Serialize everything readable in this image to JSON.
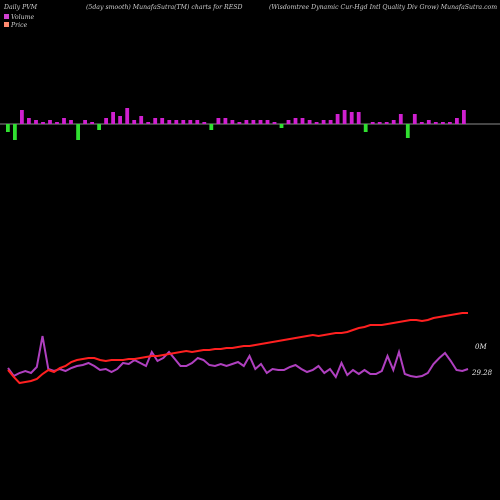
{
  "header": {
    "left": "Daily PVM",
    "smoothing": "(5day smooth) MunafaSutra(TM) charts for RESD",
    "company": "(Wisdomtree   Dynamic Cur-Hgd Intl Quality Div   Grow) MunafaSutra.com"
  },
  "legend": {
    "volume_label": "Volume",
    "price_label": "Price",
    "volume_color": "#d040d0",
    "price_color": "#ff8a70"
  },
  "chart_data": {
    "type": "line",
    "title": "",
    "price_label": "29.28",
    "volume_label": "0M",
    "colors": {
      "price": "#ff2020",
      "volume": "#b040c0",
      "bar_up": "#d020d0",
      "bar_down": "#30e030",
      "axis": "#bbbbbb"
    },
    "volume_bars": [
      -4,
      -8,
      7,
      3,
      2,
      1,
      2,
      1,
      3,
      2,
      -8,
      2,
      1,
      -3,
      3,
      6,
      4,
      8,
      2,
      4,
      1,
      3,
      3,
      2,
      2,
      2,
      2,
      2,
      1,
      -3,
      3,
      3,
      2,
      1,
      2,
      2,
      2,
      2,
      1,
      -2,
      2,
      3,
      3,
      2,
      1,
      2,
      2,
      5,
      7,
      6,
      6,
      -4,
      1,
      1,
      1,
      2,
      5,
      -7,
      5,
      1,
      2,
      1,
      1,
      1,
      3,
      7
    ],
    "volume_line": [
      368,
      376,
      373,
      371,
      373,
      367,
      336,
      369,
      371,
      369,
      371,
      368,
      366,
      365,
      363,
      366,
      370,
      369,
      372,
      369,
      363,
      364,
      360,
      363,
      366,
      352,
      361,
      358,
      352,
      359,
      366,
      366,
      363,
      358,
      360,
      365,
      366,
      364,
      366,
      364,
      362,
      366,
      356,
      369,
      364,
      373,
      369,
      370,
      370,
      367,
      365,
      369,
      372,
      370,
      366,
      373,
      369,
      377,
      363,
      375,
      370,
      374,
      370,
      374,
      374,
      371,
      356,
      370,
      352,
      374,
      376,
      377,
      376,
      373,
      364,
      358,
      353,
      361,
      370,
      371,
      369
    ],
    "price_line": [
      370,
      377,
      383,
      382,
      381,
      379,
      374,
      370,
      372,
      368,
      366,
      362,
      360,
      359,
      358,
      358,
      360,
      361,
      360,
      360,
      360,
      359,
      359,
      358,
      357,
      356,
      356,
      355,
      354,
      353,
      352,
      351,
      352,
      351,
      350,
      350,
      349,
      349,
      348,
      348,
      347,
      346,
      346,
      345,
      344,
      343,
      342,
      341,
      340,
      339,
      338,
      337,
      336,
      335,
      336,
      335,
      334,
      333,
      333,
      332,
      330,
      328,
      327,
      325,
      325,
      325,
      324,
      323,
      322,
      321,
      320,
      320,
      321,
      320,
      318,
      317,
      316,
      315,
      314,
      313,
      313
    ]
  }
}
